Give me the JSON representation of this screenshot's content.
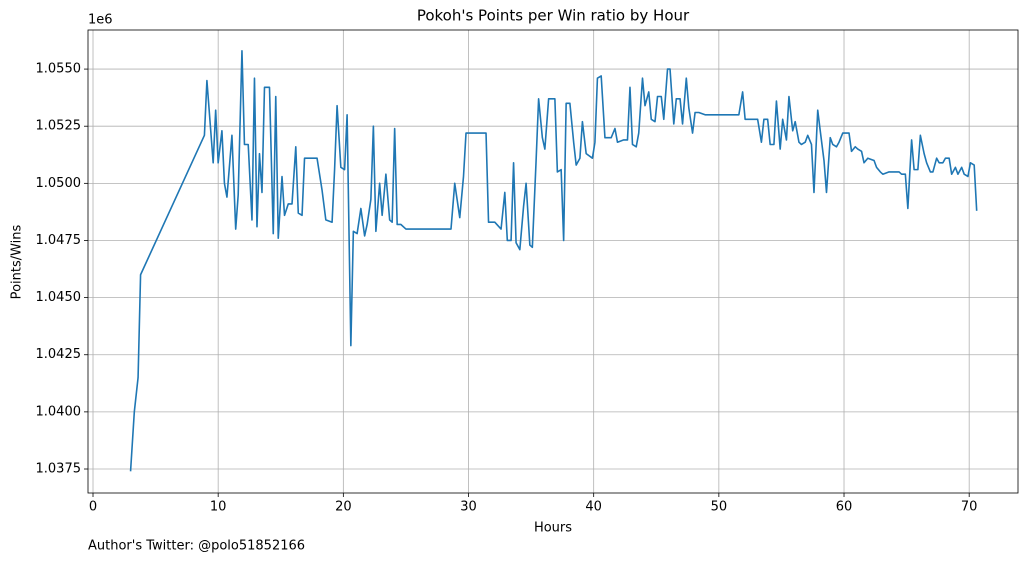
{
  "chart_data": {
    "type": "line",
    "title": "Pokoh's Points per Win ratio by Hour",
    "xlabel": "Hours",
    "ylabel": "Points/Wins",
    "y_offset_label": "1e6",
    "footnote": "Author's Twitter: @polo51852166",
    "color": "#1f77b4",
    "grid": true,
    "xlim": [
      -0.4,
      73.9
    ],
    "xticks": [
      0,
      10,
      20,
      30,
      40,
      50,
      60,
      70
    ],
    "ylim": [
      1.03645,
      1.05671
    ],
    "yticks": [
      {
        "value": 1.0375,
        "label": "1.0375"
      },
      {
        "value": 1.04,
        "label": "1.0400"
      },
      {
        "value": 1.0425,
        "label": "1.0425"
      },
      {
        "value": 1.045,
        "label": "1.0450"
      },
      {
        "value": 1.0475,
        "label": "1.0475"
      },
      {
        "value": 1.05,
        "label": "1.0500"
      },
      {
        "value": 1.0525,
        "label": "1.0525"
      },
      {
        "value": 1.055,
        "label": "1.0550"
      }
    ],
    "x": [
      3.0,
      3.3,
      3.6,
      3.8,
      8.9,
      9.1,
      9.6,
      9.8,
      10.0,
      10.3,
      10.5,
      10.7,
      11.1,
      11.4,
      11.6,
      11.9,
      12.1,
      12.4,
      12.7,
      12.9,
      13.1,
      13.3,
      13.5,
      13.7,
      14.1,
      14.4,
      14.6,
      14.8,
      15.1,
      15.3,
      15.6,
      15.9,
      16.2,
      16.4,
      16.7,
      16.9,
      17.9,
      18.3,
      18.6,
      19.1,
      19.3,
      19.5,
      19.8,
      20.1,
      20.3,
      20.6,
      20.8,
      21.1,
      21.4,
      21.7,
      21.9,
      22.2,
      22.4,
      22.6,
      22.9,
      23.1,
      23.4,
      23.7,
      23.9,
      24.1,
      24.3,
      24.6,
      25.0,
      28.6,
      28.9,
      29.3,
      29.6,
      29.8,
      31.4,
      31.6,
      32.1,
      32.6,
      32.9,
      33.1,
      33.4,
      33.6,
      33.8,
      34.1,
      34.4,
      34.6,
      34.9,
      35.1,
      35.4,
      35.6,
      35.9,
      36.1,
      36.4,
      36.9,
      37.1,
      37.4,
      37.6,
      37.8,
      38.1,
      38.4,
      38.6,
      38.9,
      39.1,
      39.4,
      39.9,
      40.1,
      40.3,
      40.6,
      40.9,
      41.4,
      41.7,
      41.9,
      42.4,
      42.7,
      42.9,
      43.1,
      43.4,
      43.6,
      43.9,
      44.1,
      44.4,
      44.6,
      44.9,
      45.1,
      45.4,
      45.6,
      45.9,
      46.1,
      46.4,
      46.6,
      46.9,
      47.1,
      47.4,
      47.6,
      47.9,
      48.1,
      48.4,
      48.9,
      51.6,
      51.9,
      52.1,
      53.1,
      53.4,
      53.6,
      53.9,
      54.1,
      54.4,
      54.6,
      54.9,
      55.1,
      55.4,
      55.6,
      55.9,
      56.1,
      56.4,
      56.6,
      56.9,
      57.1,
      57.4,
      57.6,
      57.9,
      58.1,
      58.4,
      58.6,
      58.9,
      59.1,
      59.4,
      59.6,
      59.9,
      60.4,
      60.6,
      60.9,
      61.1,
      61.4,
      61.6,
      61.9,
      62.4,
      62.6,
      62.9,
      63.1,
      63.6,
      64.1,
      64.4,
      64.6,
      64.9,
      65.1,
      65.4,
      65.6,
      65.9,
      66.1,
      66.4,
      66.6,
      66.9,
      67.1,
      67.4,
      67.6,
      67.9,
      68.1,
      68.4,
      68.6,
      68.9,
      69.1,
      69.4,
      69.6,
      69.9,
      70.1,
      70.4,
      70.6
    ],
    "values": [
      1.0374,
      1.04,
      1.0415,
      1.046,
      1.0521,
      1.0545,
      1.0509,
      1.0532,
      1.0509,
      1.0523,
      1.05,
      1.0494,
      1.0521,
      1.048,
      1.0495,
      1.0558,
      1.0517,
      1.0517,
      1.0484,
      1.0546,
      1.0481,
      1.0513,
      1.0496,
      1.0542,
      1.0542,
      1.0478,
      1.0538,
      1.0476,
      1.0503,
      1.0486,
      1.0491,
      1.0491,
      1.0516,
      1.0487,
      1.0486,
      1.0511,
      1.0511,
      1.0497,
      1.0484,
      1.0483,
      1.0506,
      1.0534,
      1.0507,
      1.0506,
      1.053,
      1.0429,
      1.0479,
      1.0478,
      1.0489,
      1.0477,
      1.0482,
      1.0493,
      1.0525,
      1.0479,
      1.05,
      1.0486,
      1.0504,
      1.0484,
      1.0483,
      1.0524,
      1.0482,
      1.0482,
      1.048,
      1.048,
      1.05,
      1.0485,
      1.0503,
      1.0522,
      1.0522,
      1.0483,
      1.0483,
      1.048,
      1.0496,
      1.0475,
      1.0475,
      1.0509,
      1.0474,
      1.0471,
      1.049,
      1.05,
      1.0473,
      1.0472,
      1.051,
      1.0537,
      1.052,
      1.0515,
      1.0537,
      1.0537,
      1.0505,
      1.0506,
      1.0475,
      1.0535,
      1.0535,
      1.0518,
      1.0508,
      1.0511,
      1.0527,
      1.0513,
      1.0511,
      1.0518,
      1.0546,
      1.0547,
      1.052,
      1.052,
      1.0524,
      1.0518,
      1.0519,
      1.0519,
      1.0542,
      1.0517,
      1.0516,
      1.0522,
      1.0546,
      1.0534,
      1.054,
      1.0528,
      1.0527,
      1.0538,
      1.0538,
      1.0528,
      1.055,
      1.055,
      1.0526,
      1.0537,
      1.0537,
      1.0526,
      1.0546,
      1.0533,
      1.0522,
      1.0531,
      1.0531,
      1.053,
      1.053,
      1.054,
      1.0528,
      1.0528,
      1.0518,
      1.0528,
      1.0528,
      1.0517,
      1.0517,
      1.0536,
      1.0515,
      1.0528,
      1.0519,
      1.0538,
      1.0523,
      1.0527,
      1.0518,
      1.0517,
      1.0518,
      1.0521,
      1.0517,
      1.0496,
      1.0532,
      1.0523,
      1.051,
      1.0496,
      1.052,
      1.0517,
      1.0516,
      1.0518,
      1.0522,
      1.0522,
      1.0514,
      1.0516,
      1.0515,
      1.0514,
      1.0509,
      1.0511,
      1.051,
      1.0507,
      1.0505,
      1.0504,
      1.0505,
      1.0505,
      1.0505,
      1.0504,
      1.0504,
      1.0489,
      1.0519,
      1.0506,
      1.0506,
      1.0521,
      1.0513,
      1.0509,
      1.0505,
      1.0505,
      1.0511,
      1.0509,
      1.0509,
      1.0511,
      1.0511,
      1.0504,
      1.0507,
      1.0504,
      1.0507,
      1.0504,
      1.0503,
      1.0509,
      1.0508,
      1.0488
    ]
  }
}
